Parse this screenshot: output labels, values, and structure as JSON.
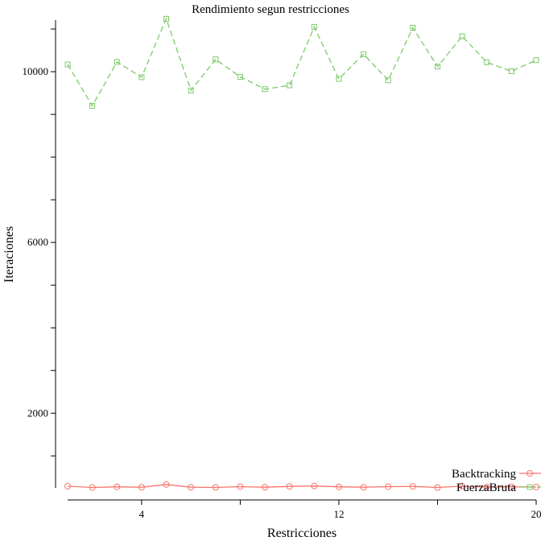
{
  "chart_data": {
    "type": "line",
    "title": "Rendimiento segun restricciones",
    "xlabel": "Restricciones",
    "ylabel": "Iteraciones",
    "x": [
      1,
      2,
      3,
      4,
      5,
      6,
      7,
      8,
      9,
      10,
      11,
      12,
      13,
      14,
      15,
      16,
      17,
      18,
      19,
      20
    ],
    "xlim": [
      1,
      20
    ],
    "ylim": [
      0,
      11500
    ],
    "x_ticks": [
      4,
      8,
      12,
      16,
      20
    ],
    "x_tick_labels": [
      "4",
      "",
      "12",
      "",
      "20"
    ],
    "y_ticks": [
      1000,
      2000,
      3000,
      4000,
      5000,
      6000,
      7000,
      8000,
      9000,
      10000,
      11000
    ],
    "y_tick_labels": [
      "",
      "2000",
      "",
      "",
      "",
      "6000",
      "",
      "",
      "",
      "10000",
      ""
    ],
    "grid": false,
    "legend_position": "bottom-right",
    "series": [
      {
        "name": "Backtracking",
        "color": "#f8766d",
        "marker": "circle",
        "dash": "solid",
        "values": [
          290,
          260,
          275,
          265,
          330,
          265,
          260,
          280,
          265,
          285,
          295,
          275,
          265,
          280,
          285,
          260,
          290,
          270,
          275,
          270
        ]
      },
      {
        "name": "FuerzaBruta",
        "color": "#7cc96a",
        "marker": "square",
        "dash": "dashed",
        "values": [
          10170,
          9200,
          10230,
          9870,
          11240,
          9560,
          10290,
          9880,
          9590,
          9680,
          11050,
          9830,
          10410,
          9800,
          11030,
          10120,
          10830,
          10220,
          10010,
          10270
        ]
      }
    ]
  }
}
